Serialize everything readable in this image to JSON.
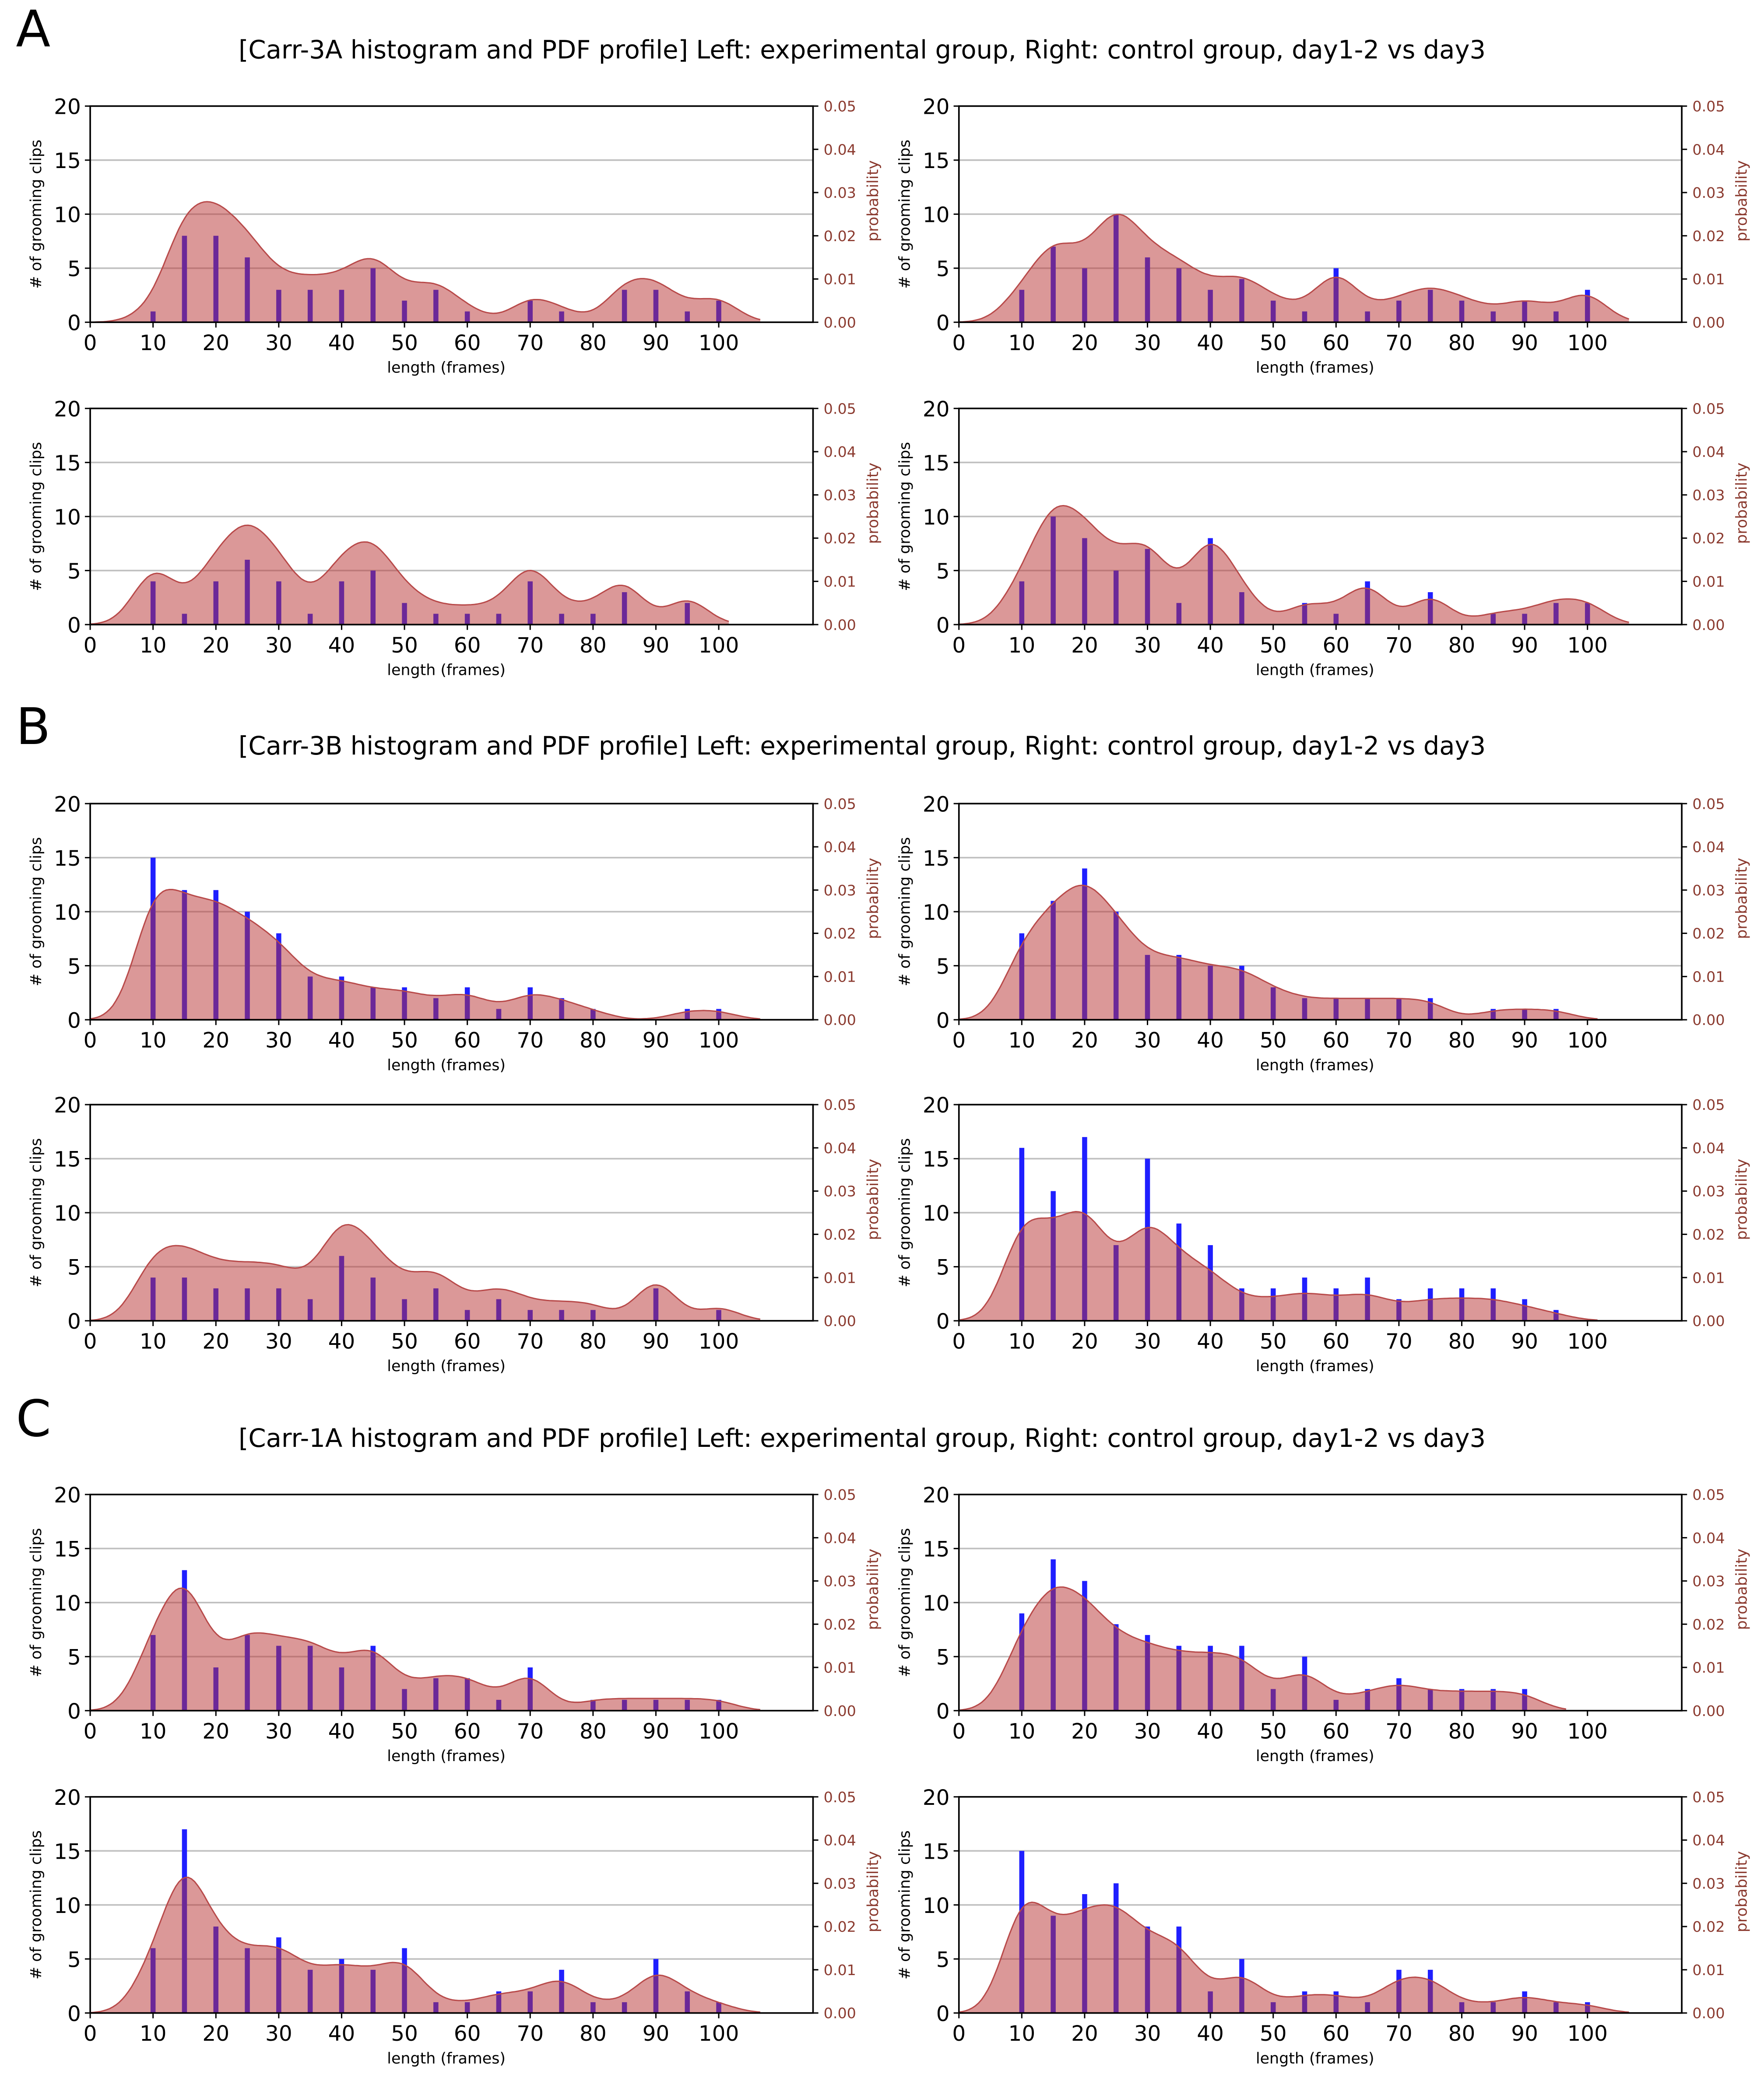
{
  "sections": [
    {
      "letter": "A",
      "title": "[Carr-3A histogram and PDF profile]  Left: experimental group, Right: control group, day1-2 vs day3"
    },
    {
      "letter": "B",
      "title": "[Carr-3B histogram and PDF profile]  Left: experimental group, Right: control group, day1-2 vs day3"
    },
    {
      "letter": "C",
      "title": "[Carr-1A histogram and PDF profile]  Left: experimental group, Right: control group, day1-2 vs day3"
    }
  ],
  "colors": {
    "bar": "#1f1fff",
    "pdf_fill": "#b83232",
    "pdf_line": "#b84a4a",
    "prob_axis": "#8b3a2f",
    "grid": "#c0c0c0"
  },
  "chart_data": [
    {
      "section": "A",
      "group": "experimental",
      "panel": "day1-2",
      "type": "bar",
      "x": [
        10,
        15,
        20,
        25,
        30,
        35,
        40,
        45,
        50,
        55,
        60,
        65,
        70,
        75,
        80,
        85,
        90,
        95,
        100
      ],
      "values": [
        1,
        8,
        8,
        6,
        3,
        3,
        3,
        5,
        2,
        3,
        1,
        0,
        2,
        1,
        0,
        3,
        3,
        1,
        2
      ],
      "xlabel": "length (frames)",
      "ylabel": "# of grooming clips",
      "y2label": "probability",
      "xlim": [
        0,
        115
      ],
      "ylim": [
        0,
        20
      ],
      "y2lim": [
        0,
        0.05
      ],
      "xticks": [
        0,
        10,
        20,
        30,
        40,
        50,
        60,
        70,
        80,
        90,
        100
      ],
      "yticks": [
        0,
        5,
        10,
        15,
        20
      ],
      "y2ticks": [
        "0.00",
        "0.01",
        "0.02",
        "0.03",
        "0.04",
        "0.05"
      ],
      "grid": true
    },
    {
      "section": "A",
      "group": "control",
      "panel": "day1-2",
      "type": "bar",
      "x": [
        10,
        15,
        20,
        25,
        30,
        35,
        40,
        45,
        50,
        55,
        60,
        65,
        70,
        75,
        80,
        85,
        90,
        95,
        100
      ],
      "values": [
        3,
        7,
        5,
        10,
        6,
        5,
        3,
        4,
        2,
        1,
        5,
        1,
        2,
        3,
        2,
        1,
        2,
        1,
        3
      ],
      "xlabel": "length (frames)",
      "ylabel": "# of grooming clips",
      "y2label": "probability",
      "xlim": [
        0,
        115
      ],
      "ylim": [
        0,
        20
      ],
      "y2lim": [
        0,
        0.05
      ],
      "xticks": [
        0,
        10,
        20,
        30,
        40,
        50,
        60,
        70,
        80,
        90,
        100
      ],
      "yticks": [
        0,
        5,
        10,
        15,
        20
      ],
      "y2ticks": [
        "0.00",
        "0.01",
        "0.02",
        "0.03",
        "0.04",
        "0.05"
      ],
      "grid": true
    },
    {
      "section": "A",
      "group": "experimental",
      "panel": "day3",
      "type": "bar",
      "x": [
        10,
        15,
        20,
        25,
        30,
        35,
        40,
        45,
        50,
        55,
        60,
        65,
        70,
        75,
        80,
        85,
        90,
        95,
        100
      ],
      "values": [
        4,
        1,
        4,
        6,
        4,
        1,
        4,
        5,
        2,
        1,
        1,
        1,
        4,
        1,
        1,
        3,
        0,
        2,
        0
      ],
      "xlabel": "length (frames)",
      "ylabel": "# of grooming clips",
      "y2label": "probability",
      "xlim": [
        0,
        115
      ],
      "ylim": [
        0,
        20
      ],
      "y2lim": [
        0,
        0.05
      ],
      "xticks": [
        0,
        10,
        20,
        30,
        40,
        50,
        60,
        70,
        80,
        90,
        100
      ],
      "yticks": [
        0,
        5,
        10,
        15,
        20
      ],
      "y2ticks": [
        "0.00",
        "0.01",
        "0.02",
        "0.03",
        "0.04",
        "0.05"
      ],
      "grid": true
    },
    {
      "section": "A",
      "group": "control",
      "panel": "day3",
      "type": "bar",
      "x": [
        10,
        15,
        20,
        25,
        30,
        35,
        40,
        45,
        50,
        55,
        60,
        65,
        70,
        75,
        80,
        85,
        90,
        95,
        100
      ],
      "values": [
        4,
        10,
        8,
        5,
        7,
        2,
        8,
        3,
        0,
        2,
        1,
        4,
        0,
        3,
        0,
        1,
        1,
        2,
        2
      ],
      "xlabel": "length (frames)",
      "ylabel": "# of grooming clips",
      "y2label": "probability",
      "xlim": [
        0,
        115
      ],
      "ylim": [
        0,
        20
      ],
      "y2lim": [
        0,
        0.05
      ],
      "xticks": [
        0,
        10,
        20,
        30,
        40,
        50,
        60,
        70,
        80,
        90,
        100
      ],
      "yticks": [
        0,
        5,
        10,
        15,
        20
      ],
      "y2ticks": [
        "0.00",
        "0.01",
        "0.02",
        "0.03",
        "0.04",
        "0.05"
      ],
      "grid": true
    },
    {
      "section": "B",
      "group": "experimental",
      "panel": "day1-2",
      "type": "bar",
      "x": [
        10,
        15,
        20,
        25,
        30,
        35,
        40,
        45,
        50,
        55,
        60,
        65,
        70,
        75,
        80,
        85,
        90,
        95,
        100
      ],
      "values": [
        15,
        12,
        12,
        10,
        8,
        4,
        4,
        3,
        3,
        2,
        3,
        1,
        3,
        2,
        1,
        0,
        0,
        1,
        1
      ],
      "xlabel": "length (frames)",
      "ylabel": "# of grooming clips",
      "y2label": "probability",
      "xlim": [
        0,
        115
      ],
      "ylim": [
        0,
        20
      ],
      "y2lim": [
        0,
        0.05
      ],
      "xticks": [
        0,
        10,
        20,
        30,
        40,
        50,
        60,
        70,
        80,
        90,
        100
      ],
      "yticks": [
        0,
        5,
        10,
        15,
        20
      ],
      "y2ticks": [
        "0.00",
        "0.01",
        "0.02",
        "0.03",
        "0.04",
        "0.05"
      ],
      "grid": true
    },
    {
      "section": "B",
      "group": "control",
      "panel": "day1-2",
      "type": "bar",
      "x": [
        10,
        15,
        20,
        25,
        30,
        35,
        40,
        45,
        50,
        55,
        60,
        65,
        70,
        75,
        80,
        85,
        90,
        95,
        100
      ],
      "values": [
        8,
        11,
        14,
        10,
        6,
        6,
        5,
        5,
        3,
        2,
        2,
        2,
        2,
        2,
        0,
        1,
        1,
        1,
        0
      ],
      "xlabel": "length (frames)",
      "ylabel": "# of grooming clips",
      "y2label": "probability",
      "xlim": [
        0,
        115
      ],
      "ylim": [
        0,
        20
      ],
      "y2lim": [
        0,
        0.05
      ],
      "xticks": [
        0,
        10,
        20,
        30,
        40,
        50,
        60,
        70,
        80,
        90,
        100
      ],
      "yticks": [
        0,
        5,
        10,
        15,
        20
      ],
      "y2ticks": [
        "0.00",
        "0.01",
        "0.02",
        "0.03",
        "0.04",
        "0.05"
      ],
      "grid": true
    },
    {
      "section": "B",
      "group": "experimental",
      "panel": "day3",
      "type": "bar",
      "x": [
        10,
        15,
        20,
        25,
        30,
        35,
        40,
        45,
        50,
        55,
        60,
        65,
        70,
        75,
        80,
        85,
        90,
        95,
        100
      ],
      "values": [
        4,
        4,
        3,
        3,
        3,
        2,
        6,
        4,
        2,
        3,
        1,
        2,
        1,
        1,
        1,
        0,
        3,
        0,
        1
      ],
      "xlabel": "length (frames)",
      "ylabel": "# of grooming clips",
      "y2label": "probability",
      "xlim": [
        0,
        115
      ],
      "ylim": [
        0,
        20
      ],
      "y2lim": [
        0,
        0.05
      ],
      "xticks": [
        0,
        10,
        20,
        30,
        40,
        50,
        60,
        70,
        80,
        90,
        100
      ],
      "yticks": [
        0,
        5,
        10,
        15,
        20
      ],
      "y2ticks": [
        "0.00",
        "0.01",
        "0.02",
        "0.03",
        "0.04",
        "0.05"
      ],
      "grid": true
    },
    {
      "section": "B",
      "group": "control",
      "panel": "day3",
      "type": "bar",
      "x": [
        10,
        15,
        20,
        25,
        30,
        35,
        40,
        45,
        50,
        55,
        60,
        65,
        70,
        75,
        80,
        85,
        90,
        95,
        100
      ],
      "values": [
        16,
        12,
        17,
        7,
        15,
        9,
        7,
        3,
        3,
        4,
        3,
        4,
        2,
        3,
        3,
        3,
        2,
        1,
        0
      ],
      "xlabel": "length (frames)",
      "ylabel": "# of grooming clips",
      "y2label": "probability",
      "xlim": [
        0,
        115
      ],
      "ylim": [
        0,
        20
      ],
      "y2lim": [
        0,
        0.05
      ],
      "xticks": [
        0,
        10,
        20,
        30,
        40,
        50,
        60,
        70,
        80,
        90,
        100
      ],
      "yticks": [
        0,
        5,
        10,
        15,
        20
      ],
      "y2ticks": [
        "0.00",
        "0.01",
        "0.02",
        "0.03",
        "0.04",
        "0.05"
      ],
      "grid": true
    },
    {
      "section": "C",
      "group": "experimental",
      "panel": "day1-2",
      "type": "bar",
      "x": [
        10,
        15,
        20,
        25,
        30,
        35,
        40,
        45,
        50,
        55,
        60,
        65,
        70,
        75,
        80,
        85,
        90,
        95,
        100
      ],
      "values": [
        7,
        13,
        4,
        7,
        6,
        6,
        4,
        6,
        2,
        3,
        3,
        1,
        4,
        0,
        1,
        1,
        1,
        1,
        1
      ],
      "xlabel": "length (frames)",
      "ylabel": "# of grooming clips",
      "y2label": "probability",
      "xlim": [
        0,
        115
      ],
      "ylim": [
        0,
        20
      ],
      "y2lim": [
        0,
        0.05
      ],
      "xticks": [
        0,
        10,
        20,
        30,
        40,
        50,
        60,
        70,
        80,
        90,
        100
      ],
      "yticks": [
        0,
        5,
        10,
        15,
        20
      ],
      "y2ticks": [
        "0.00",
        "0.01",
        "0.02",
        "0.03",
        "0.04",
        "0.05"
      ],
      "grid": true
    },
    {
      "section": "C",
      "group": "control",
      "panel": "day1-2",
      "type": "bar",
      "x": [
        10,
        15,
        20,
        25,
        30,
        35,
        40,
        45,
        50,
        55,
        60,
        65,
        70,
        75,
        80,
        85,
        90,
        95,
        100
      ],
      "values": [
        9,
        14,
        12,
        8,
        7,
        6,
        6,
        6,
        2,
        5,
        1,
        2,
        3,
        2,
        2,
        2,
        2,
        0,
        0
      ],
      "xlabel": "length (frames)",
      "ylabel": "# of grooming clips",
      "y2label": "probability",
      "xlim": [
        0,
        115
      ],
      "ylim": [
        0,
        20
      ],
      "y2lim": [
        0,
        0.05
      ],
      "xticks": [
        0,
        10,
        20,
        30,
        40,
        50,
        60,
        70,
        80,
        90,
        100
      ],
      "yticks": [
        0,
        5,
        10,
        15,
        20
      ],
      "y2ticks": [
        "0.00",
        "0.01",
        "0.02",
        "0.03",
        "0.04",
        "0.05"
      ],
      "grid": true
    },
    {
      "section": "C",
      "group": "experimental",
      "panel": "day3",
      "type": "bar",
      "x": [
        10,
        15,
        20,
        25,
        30,
        35,
        40,
        45,
        50,
        55,
        60,
        65,
        70,
        75,
        80,
        85,
        90,
        95,
        100
      ],
      "values": [
        6,
        17,
        8,
        6,
        7,
        4,
        5,
        4,
        6,
        1,
        1,
        2,
        2,
        4,
        1,
        1,
        5,
        2,
        1
      ],
      "xlabel": "length (frames)",
      "ylabel": "# of grooming clips",
      "y2label": "probability",
      "xlim": [
        0,
        115
      ],
      "ylim": [
        0,
        20
      ],
      "y2lim": [
        0,
        0.05
      ],
      "xticks": [
        0,
        10,
        20,
        30,
        40,
        50,
        60,
        70,
        80,
        90,
        100
      ],
      "yticks": [
        0,
        5,
        10,
        15,
        20
      ],
      "y2ticks": [
        "0.00",
        "0.01",
        "0.02",
        "0.03",
        "0.04",
        "0.05"
      ],
      "grid": true
    },
    {
      "section": "C",
      "group": "control",
      "panel": "day3",
      "type": "bar",
      "x": [
        10,
        15,
        20,
        25,
        30,
        35,
        40,
        45,
        50,
        55,
        60,
        65,
        70,
        75,
        80,
        85,
        90,
        95,
        100
      ],
      "values": [
        15,
        9,
        11,
        12,
        8,
        8,
        2,
        5,
        1,
        2,
        2,
        1,
        4,
        4,
        1,
        1,
        2,
        1,
        1
      ],
      "xlabel": "length (frames)",
      "ylabel": "# of grooming clips",
      "y2label": "probability",
      "xlim": [
        0,
        115
      ],
      "ylim": [
        0,
        20
      ],
      "y2lim": [
        0,
        0.05
      ],
      "xticks": [
        0,
        10,
        20,
        30,
        40,
        50,
        60,
        70,
        80,
        90,
        100
      ],
      "yticks": [
        0,
        5,
        10,
        15,
        20
      ],
      "y2ticks": [
        "0.00",
        "0.01",
        "0.02",
        "0.03",
        "0.04",
        "0.05"
      ],
      "grid": true
    }
  ]
}
